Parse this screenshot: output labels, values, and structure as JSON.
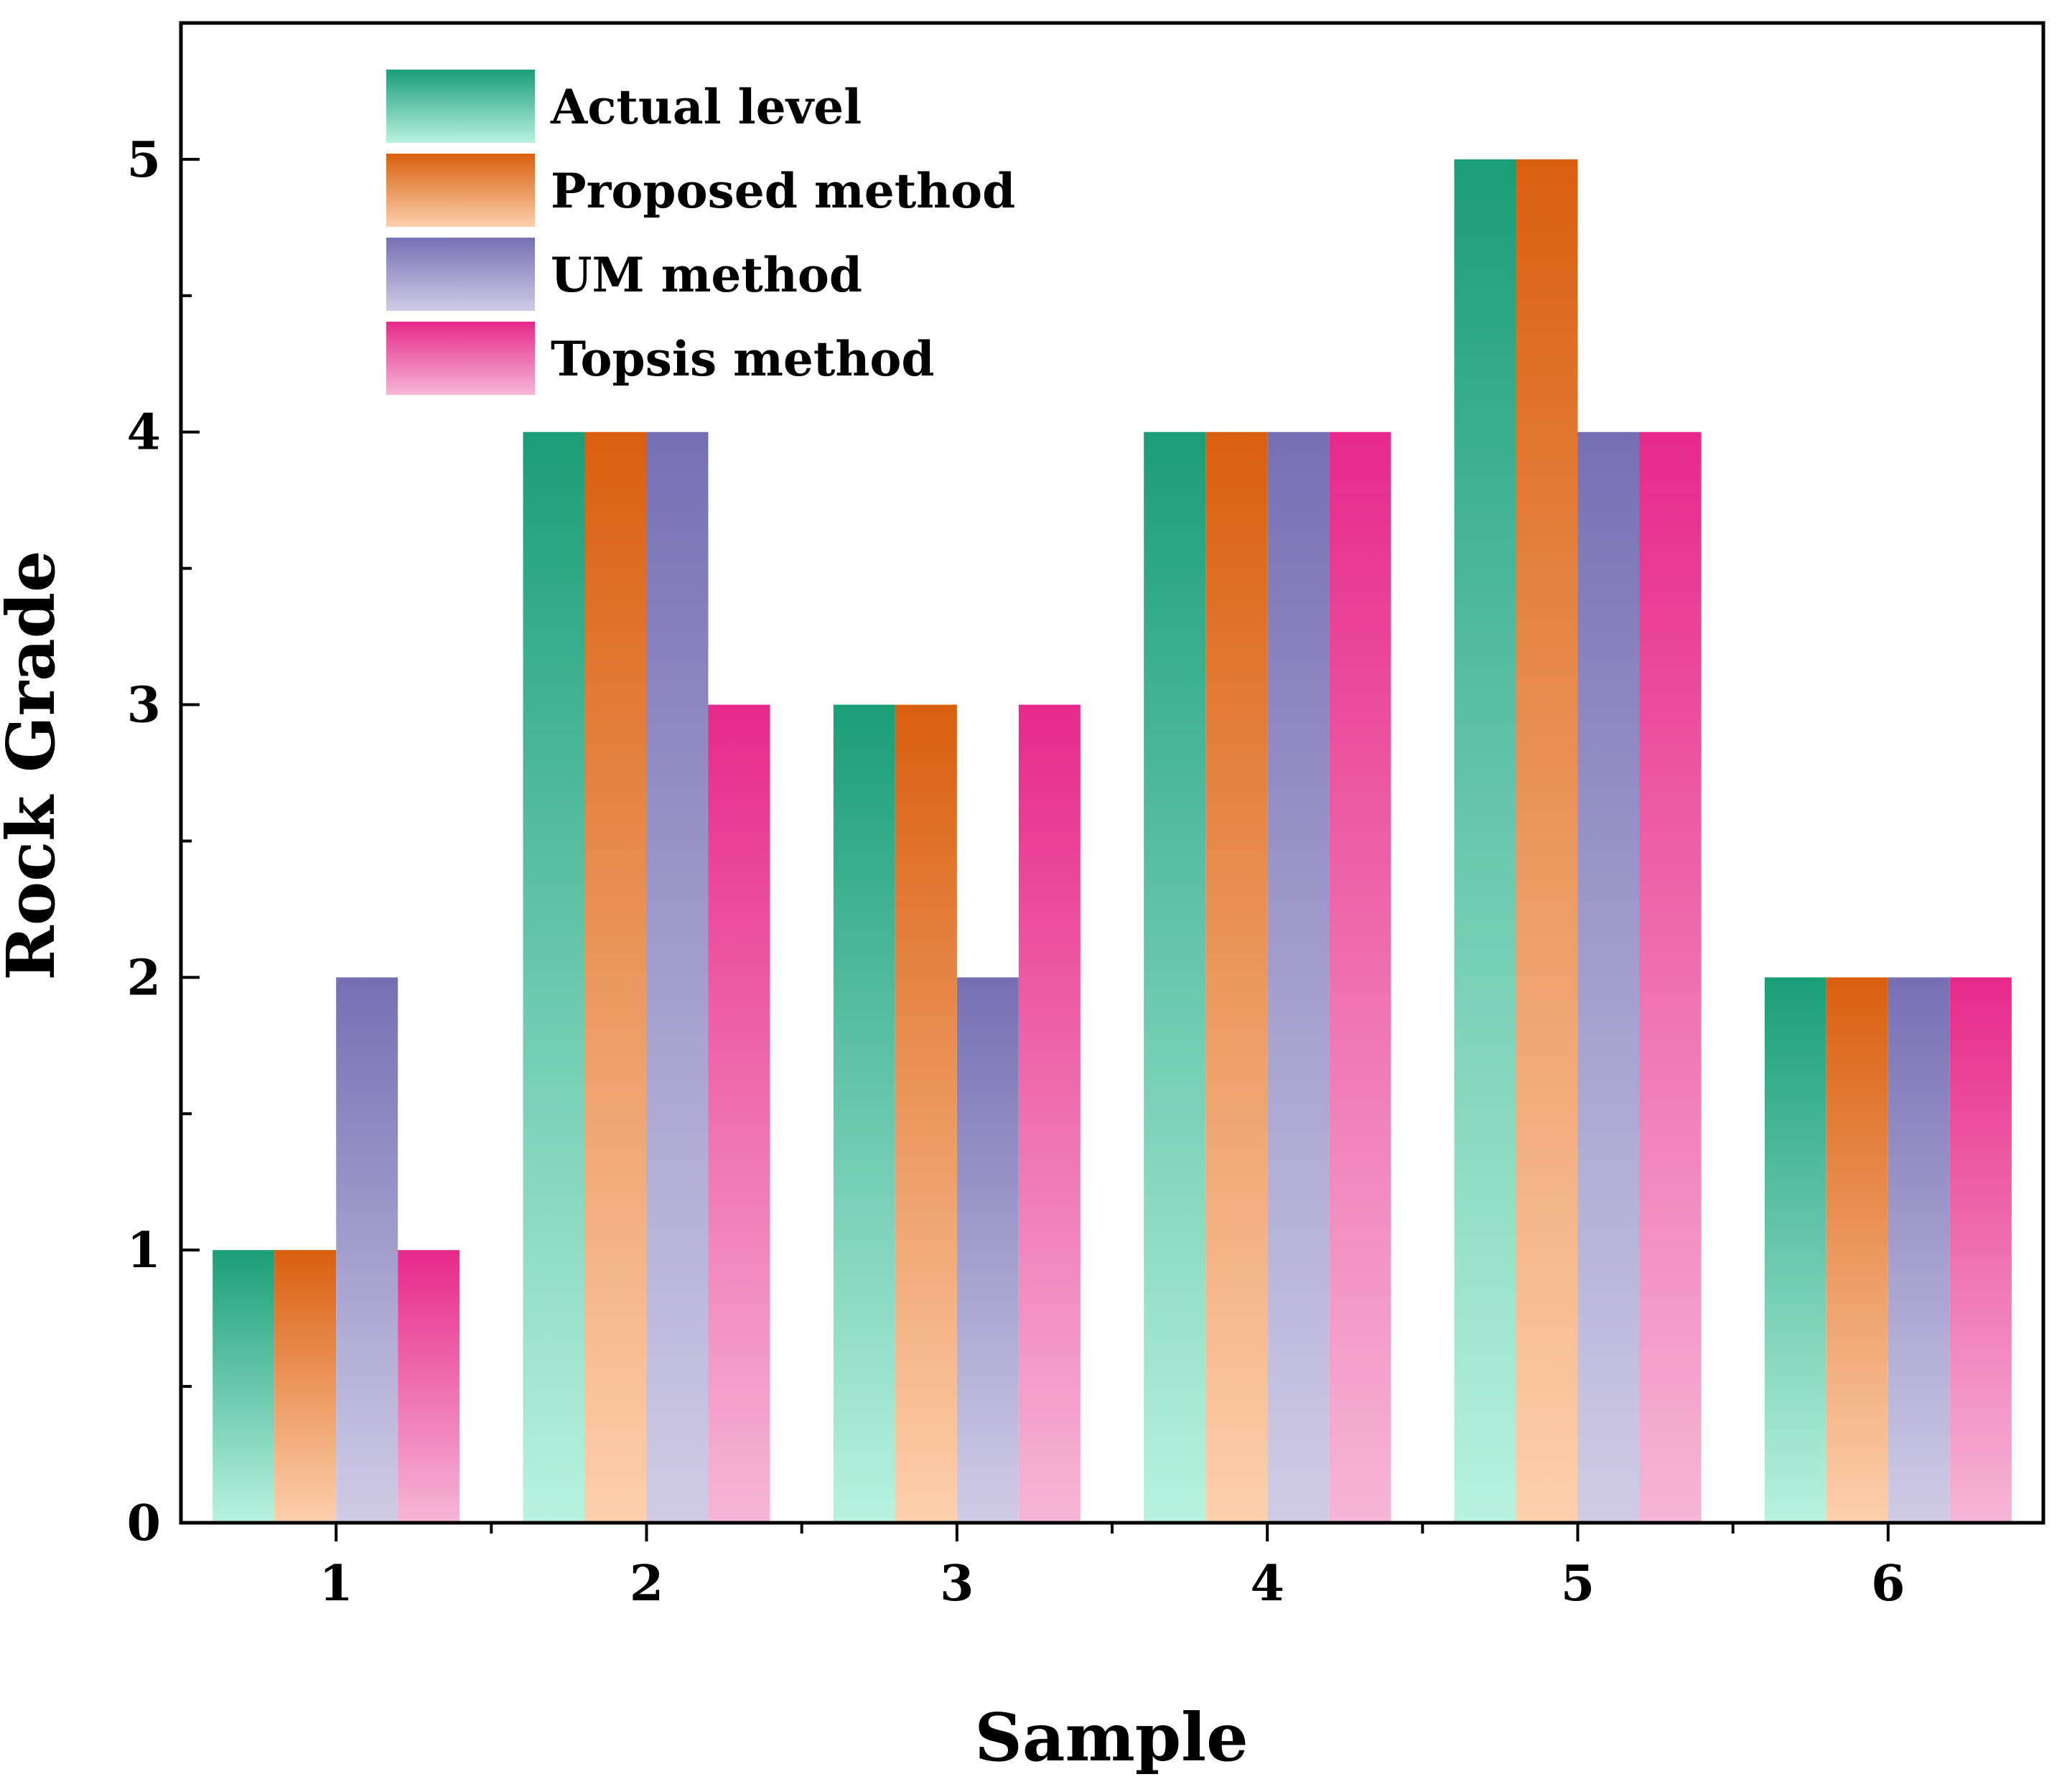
{
  "chart_data": {
    "type": "bar",
    "xlabel": "Sample",
    "ylabel": "Rock Grade",
    "categories": [
      "1",
      "2",
      "3",
      "4",
      "5",
      "6"
    ],
    "ylim": [
      0,
      5.5
    ],
    "yticks": [
      "0",
      "1",
      "2",
      "3",
      "4",
      "5"
    ],
    "grid": false,
    "legend_position": "top-left",
    "series": [
      {
        "name": "Actual level",
        "values": [
          1,
          4,
          3,
          4,
          5,
          2
        ],
        "color_top": "#1a9e77",
        "color_bottom": "#b8f2e0"
      },
      {
        "name": "Proposed method",
        "values": [
          1,
          4,
          3,
          4,
          5,
          2
        ],
        "color_top": "#d95f0e",
        "color_bottom": "#fdd0ad"
      },
      {
        "name": "UM method",
        "values": [
          2,
          4,
          2,
          4,
          4,
          2
        ],
        "color_top": "#7570b3",
        "color_bottom": "#d0cce6"
      },
      {
        "name": "Topsis method",
        "values": [
          1,
          3,
          3,
          4,
          4,
          2
        ],
        "color_top": "#e7298a",
        "color_bottom": "#f6b6d6"
      }
    ]
  }
}
